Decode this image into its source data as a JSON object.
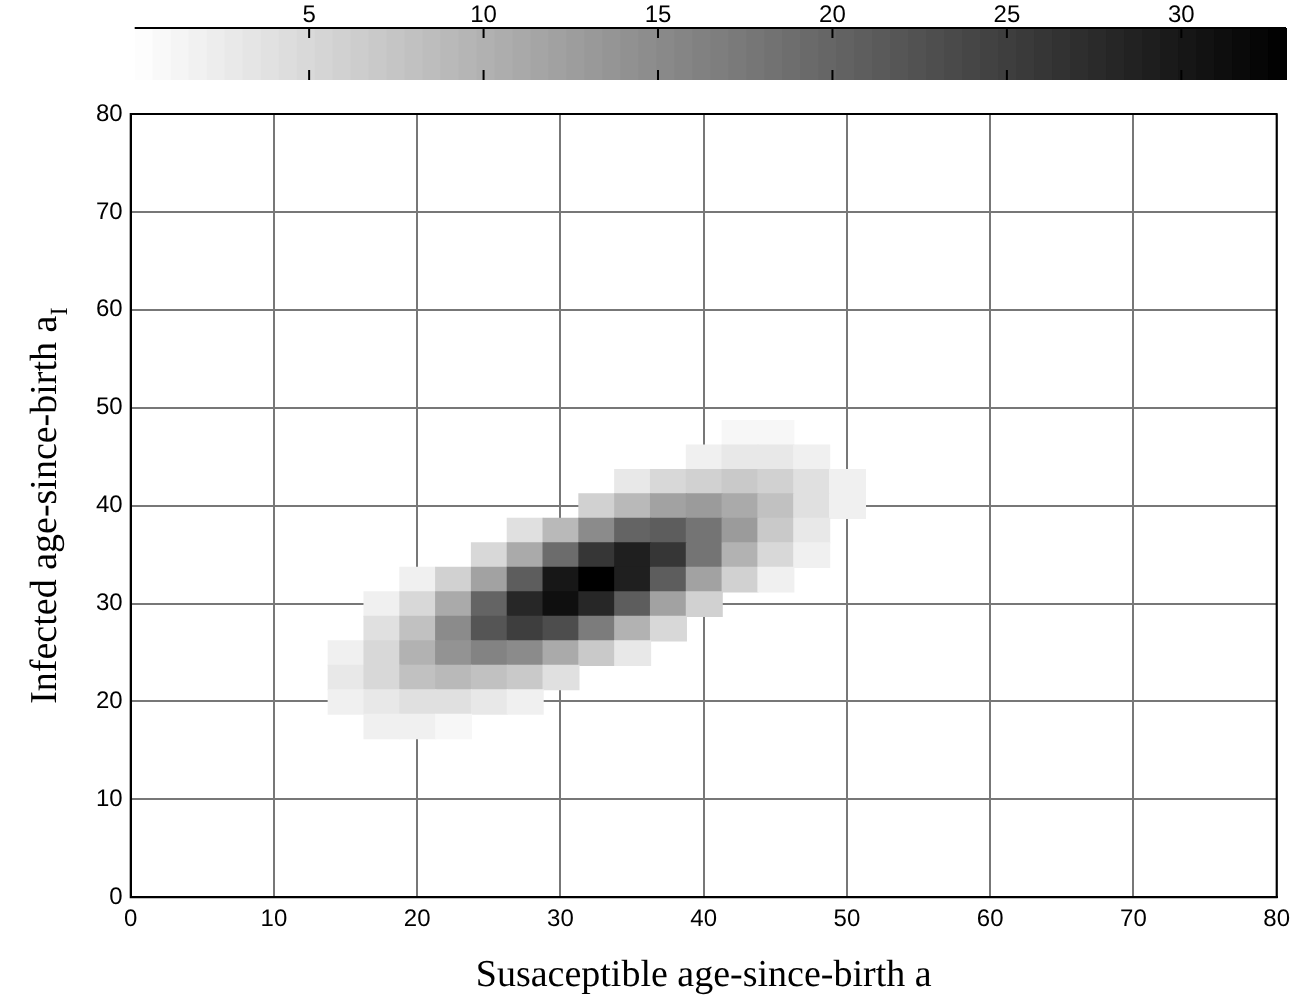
{
  "chart_data": {
    "type": "heatmap",
    "xlabel": "Susaceptible age-since-birth a",
    "ylabel": "Infected age-since-birth a$_{I}$",
    "x": [
      15,
      17.5,
      20,
      22.5,
      25,
      27.5,
      30,
      32.5,
      35,
      37.5,
      40,
      42.5,
      45,
      47.5,
      50
    ],
    "y": [
      47.5,
      45,
      42.5,
      40,
      37.5,
      35,
      32.5,
      30,
      27.5,
      25,
      22.5,
      20,
      17.5
    ],
    "cells": [
      [
        null,
        null,
        null,
        null,
        null,
        null,
        null,
        null,
        null,
        null,
        null,
        1,
        1,
        null,
        null
      ],
      [
        null,
        null,
        null,
        null,
        null,
        null,
        null,
        null,
        null,
        null,
        2,
        3,
        3,
        2,
        null
      ],
      [
        null,
        null,
        null,
        null,
        null,
        null,
        null,
        null,
        3,
        5,
        6,
        7,
        6,
        4,
        2
      ],
      [
        null,
        null,
        null,
        null,
        null,
        null,
        null,
        6,
        9,
        12,
        13,
        11,
        8,
        4,
        2
      ],
      [
        null,
        null,
        null,
        null,
        null,
        4,
        9,
        15,
        20,
        21,
        18,
        13,
        7,
        3,
        null
      ],
      [
        null,
        null,
        null,
        null,
        5,
        11,
        19,
        26,
        29,
        26,
        18,
        10,
        5,
        2,
        null
      ],
      [
        null,
        null,
        2,
        6,
        12,
        21,
        30,
        33,
        29,
        21,
        12,
        6,
        2,
        null,
        null
      ],
      [
        null,
        2,
        5,
        11,
        20,
        28,
        31,
        28,
        21,
        12,
        6,
        null,
        null,
        null,
        null
      ],
      [
        null,
        4,
        8,
        15,
        22,
        25,
        23,
        17,
        10,
        5,
        null,
        null,
        null,
        null,
        null
      ],
      [
        2,
        5,
        10,
        14,
        16,
        15,
        11,
        7,
        3,
        null,
        null,
        null,
        null,
        null,
        null
      ],
      [
        3,
        5,
        8,
        9,
        8,
        7,
        4,
        null,
        null,
        null,
        null,
        null,
        null,
        null,
        null
      ],
      [
        2,
        3,
        4,
        4,
        3,
        2,
        null,
        null,
        null,
        null,
        null,
        null,
        null,
        null,
        null
      ],
      [
        null,
        2,
        2,
        1,
        null,
        null,
        null,
        null,
        null,
        null,
        null,
        null,
        null,
        null,
        null
      ]
    ],
    "xlim": [
      0,
      80
    ],
    "ylim": [
      0,
      80
    ],
    "xticks": [
      0,
      10,
      20,
      30,
      40,
      50,
      60,
      70,
      80
    ],
    "yticks": [
      0,
      10,
      20,
      30,
      40,
      50,
      60,
      70,
      80
    ],
    "clim": [
      0,
      33
    ],
    "cticks": [
      5,
      10,
      15,
      20,
      25,
      30
    ],
    "grid": true
  }
}
